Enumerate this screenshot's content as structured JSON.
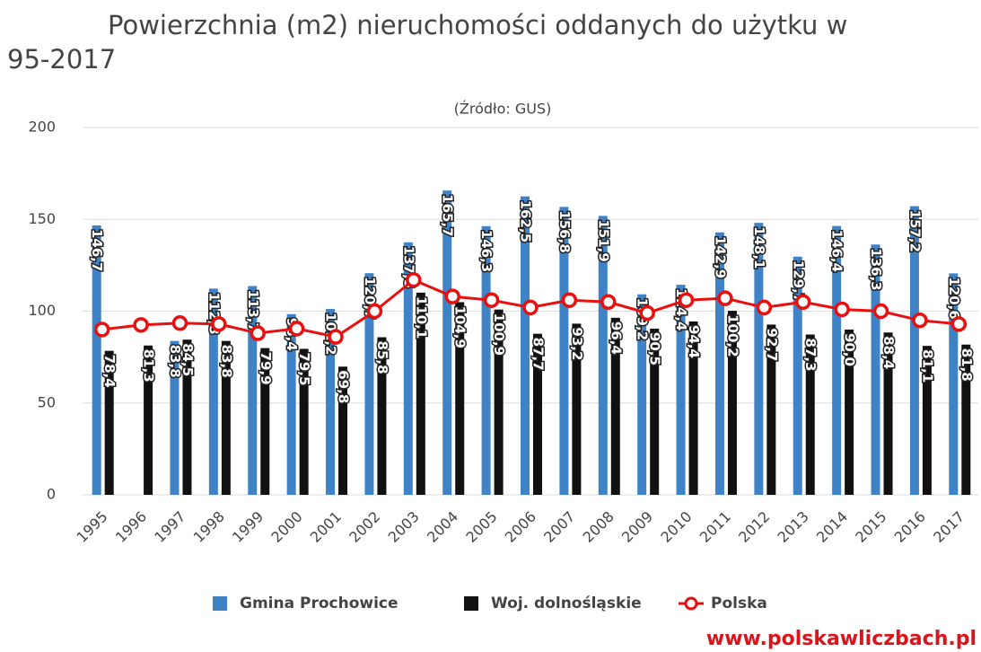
{
  "chart_data": {
    "type": "bar_line",
    "title": [
      "Powierzchnia (m2) nieruchomości oddanych do użytku w",
      "95-2017"
    ],
    "subtitle": "(Źródło: GUS)",
    "categories": [
      "1995",
      "1996",
      "1997",
      "1998",
      "1999",
      "2000",
      "2001",
      "2002",
      "2003",
      "2004",
      "2005",
      "2006",
      "2007",
      "2008",
      "2009",
      "2010",
      "2011",
      "2012",
      "2013",
      "2014",
      "2015",
      "2016",
      "2017"
    ],
    "series": [
      {
        "name": "Gmina Prochowice",
        "color": "#3f83c6",
        "kind": "bar",
        "values": [
          146.7,
          null,
          83.8,
          112.3,
          113.7,
          98.4,
          101.2,
          120.7,
          137.5,
          165.7,
          146.3,
          162.5,
          156.8,
          151.9,
          109.2,
          114.4,
          142.9,
          148.1,
          129.7,
          146.4,
          136.3,
          157.2,
          120.6
        ],
        "value_labels": [
          "146,7",
          null,
          "83,8",
          "112,3",
          "113,7",
          "98,4",
          "101,2",
          "120,7",
          "137,5",
          "165,7",
          "146,3",
          "162,5",
          "156,8",
          "151,9",
          "109,2",
          "114,4",
          "142,9",
          "148,1",
          "129,7",
          "146,4",
          "136,3",
          "157,2",
          "120,6"
        ]
      },
      {
        "name": "Woj. dolnośląskie",
        "color": "#111111",
        "kind": "bar",
        "values": [
          78.4,
          81.3,
          84.5,
          83.8,
          79.9,
          79.5,
          69.8,
          85.8,
          110.1,
          104.9,
          100.9,
          87.7,
          93.2,
          96.4,
          90.5,
          94.4,
          100.2,
          92.7,
          87.3,
          90.0,
          88.4,
          81.1,
          81.8
        ],
        "value_labels": [
          "78,4",
          "81,3",
          "84,5",
          "83,8",
          "79,9",
          "79,5",
          "69,8",
          "85,8",
          "110,1",
          "104,9",
          "100,9",
          "87,7",
          "93,2",
          "96,4",
          "90,5",
          "94,4",
          "100,2",
          "92,7",
          "87,3",
          "90,0",
          "88,4",
          "81,1",
          "81,8"
        ]
      },
      {
        "name": "Polska",
        "color": "#e8100f",
        "kind": "line",
        "values": [
          90,
          92.5,
          93.5,
          93,
          88,
          90.5,
          86,
          100,
          117,
          108,
          106,
          102,
          106,
          105,
          99,
          106,
          107,
          102,
          105,
          101,
          100,
          95,
          93
        ]
      }
    ],
    "ylim": [
      0,
      200
    ],
    "yticks": [
      0,
      50,
      100,
      150,
      200
    ],
    "grid": true,
    "watermark": "www.polskawliczbach.pl"
  }
}
